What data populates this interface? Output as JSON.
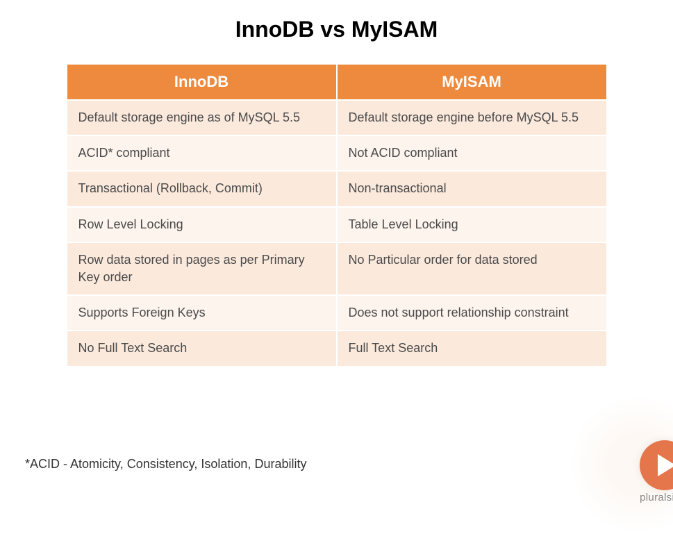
{
  "title": "InnoDB vs MyISAM",
  "table": {
    "type": "table",
    "header_bg": "#ed8a3e",
    "header_fg": "#ffffff",
    "row_odd_bg": "#fbe9dc",
    "row_even_bg": "#fdf4ed",
    "cell_fg": "#4a4a4a",
    "border_color": "#ffffff",
    "header_fontsize": 22,
    "cell_fontsize": 18,
    "columns": [
      "InnoDB",
      "MyISAM"
    ],
    "rows": [
      [
        "Default storage engine as of MySQL 5.5",
        "Default storage engine before MySQL 5.5"
      ],
      [
        "ACID* compliant",
        "Not ACID compliant"
      ],
      [
        "Transactional (Rollback, Commit)",
        "Non-transactional"
      ],
      [
        "Row Level Locking",
        "Table Level Locking"
      ],
      [
        "Row data stored in pages as per Primary Key order",
        "No Particular order for data stored"
      ],
      [
        "Supports Foreign Keys",
        "Does not support relationship constraint"
      ],
      [
        "No Full Text Search",
        "Full Text Search"
      ]
    ]
  },
  "footnote": "*ACID - Atomicity, Consistency, Isolation, Durability",
  "brand": {
    "label": "pluralsight",
    "play_bg": "#e5754b",
    "play_fg": "#ffffff"
  },
  "colors": {
    "background": "#ffffff",
    "title_color": "#000000",
    "footnote_color": "#333333",
    "brand_text_color": "#888888"
  },
  "typography": {
    "title_fontsize": 32,
    "title_weight": 700,
    "footnote_fontsize": 18
  }
}
